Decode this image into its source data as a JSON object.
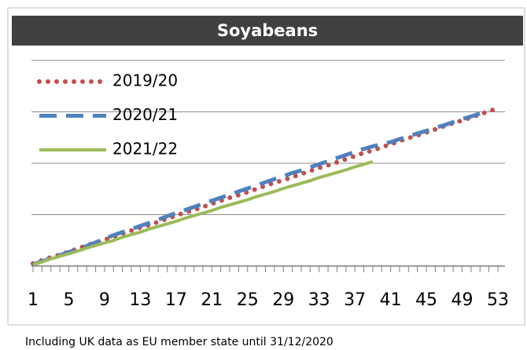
{
  "chart_data": {
    "type": "line",
    "title": "Soyabeans",
    "footnote": "Including UK data as EU member state until 31/12/2020",
    "x": [
      1,
      2,
      3,
      4,
      5,
      6,
      7,
      8,
      9,
      10,
      11,
      12,
      13,
      14,
      15,
      16,
      17,
      18,
      19,
      20,
      21,
      22,
      23,
      24,
      25,
      26,
      27,
      28,
      29,
      30,
      31,
      32,
      33,
      34,
      35,
      36,
      37,
      38,
      39,
      40,
      41,
      42,
      43,
      44,
      45,
      46,
      47,
      48,
      49,
      50,
      51,
      52,
      53
    ],
    "xlim": [
      1,
      53
    ],
    "xticks": [
      1,
      5,
      9,
      13,
      17,
      21,
      25,
      29,
      33,
      37,
      41,
      45,
      49,
      53
    ],
    "ylim": [
      0,
      4.2
    ],
    "yticks": [
      0,
      1,
      2,
      3,
      4
    ],
    "grid": true,
    "legend": "top-left",
    "series": [
      {
        "name": "2019/20",
        "color": "#c0504d",
        "style": "dotted",
        "values": [
          0.05,
          0.11,
          0.17,
          0.22,
          0.28,
          0.34,
          0.4,
          0.46,
          0.51,
          0.57,
          0.63,
          0.69,
          0.75,
          0.8,
          0.86,
          0.92,
          0.98,
          1.04,
          1.09,
          1.15,
          1.21,
          1.27,
          1.33,
          1.38,
          1.44,
          1.5,
          1.56,
          1.62,
          1.67,
          1.73,
          1.79,
          1.85,
          1.91,
          1.96,
          2.02,
          2.08,
          2.14,
          2.2,
          2.25,
          2.31,
          2.37,
          2.43,
          2.49,
          2.54,
          2.6,
          2.66,
          2.72,
          2.78,
          2.83,
          2.89,
          2.95,
          3.01,
          3.07
        ]
      },
      {
        "name": "2020/21",
        "color": "#4f81bd",
        "style": "dashed",
        "values": [
          0.03,
          0.09,
          0.15,
          0.21,
          0.27,
          0.33,
          0.39,
          0.46,
          0.53,
          0.6,
          0.66,
          0.72,
          0.78,
          0.84,
          0.9,
          0.97,
          1.03,
          1.09,
          1.15,
          1.21,
          1.27,
          1.33,
          1.39,
          1.45,
          1.51,
          1.57,
          1.63,
          1.69,
          1.75,
          1.81,
          1.86,
          1.92,
          1.98,
          2.04,
          2.1,
          2.16,
          2.22,
          2.28,
          2.33,
          2.37,
          2.41,
          2.47,
          2.52,
          2.58,
          2.63,
          2.69,
          2.74,
          2.8,
          2.86,
          2.91,
          2.97,
          3.03,
          null
        ]
      },
      {
        "name": "2021/22",
        "color": "#9bbb59",
        "style": "solid",
        "values": [
          0.03,
          0.08,
          0.14,
          0.19,
          0.24,
          0.29,
          0.35,
          0.4,
          0.45,
          0.5,
          0.56,
          0.61,
          0.66,
          0.72,
          0.77,
          0.82,
          0.87,
          0.93,
          0.98,
          1.03,
          1.08,
          1.14,
          1.19,
          1.24,
          1.29,
          1.35,
          1.4,
          1.45,
          1.51,
          1.56,
          1.61,
          1.66,
          1.72,
          1.77,
          1.82,
          1.87,
          1.93,
          1.98,
          2.03,
          null,
          null,
          null,
          null,
          null,
          null,
          null,
          null,
          null,
          null,
          null,
          null,
          null,
          null
        ]
      }
    ]
  }
}
